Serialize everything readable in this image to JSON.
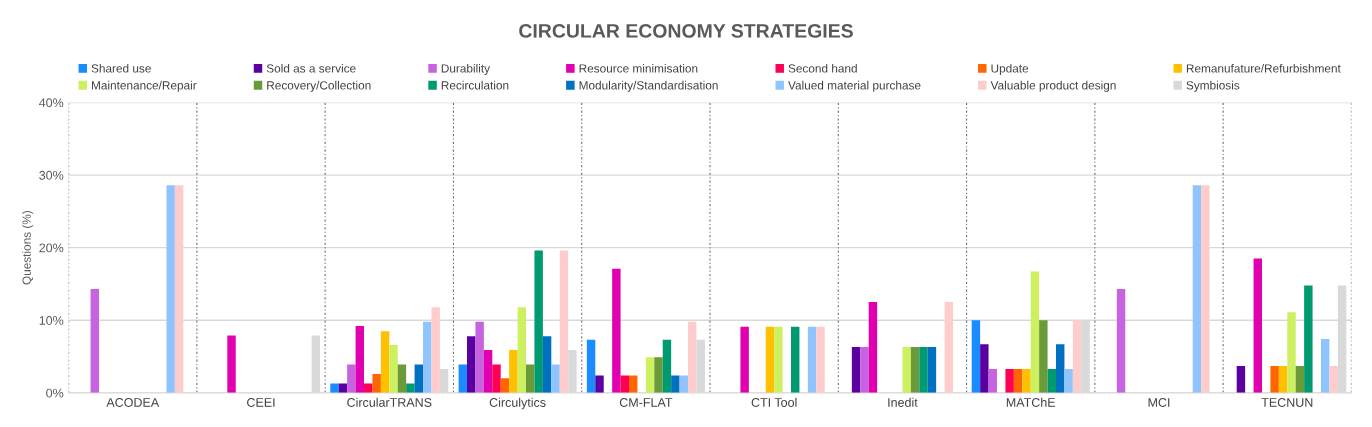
{
  "chart_data": {
    "type": "bar",
    "title": "CIRCULAR ECONOMY STRATEGIES",
    "ylabel": "Questions (%)",
    "categories": [
      "ACODEA",
      "CEEI",
      "CircularTRANS",
      "Circulytics",
      "CM-FLAT",
      "CTI Tool",
      "Inedit",
      "MATChE",
      "MCI",
      "TECNUN"
    ],
    "ylim": [
      0,
      40
    ],
    "yticks": [
      {
        "value": 0,
        "label": "0%"
      },
      {
        "value": 10,
        "label": "10%"
      },
      {
        "value": 20,
        "label": "20%"
      },
      {
        "value": 30,
        "label": "30%"
      },
      {
        "value": 40,
        "label": "40%"
      }
    ],
    "grid": "y",
    "legend": "top",
    "series": [
      {
        "name": "Shared use",
        "color": "#1a8cff",
        "values": [
          0,
          0,
          1.3,
          3.9,
          7.3,
          0,
          0,
          10,
          0,
          0
        ]
      },
      {
        "name": "Sold as a service",
        "color": "#5b00a0",
        "values": [
          0,
          0,
          1.3,
          7.8,
          2.4,
          0,
          6.3,
          6.7,
          0,
          3.7
        ]
      },
      {
        "name": "Durability",
        "color": "#c763e0",
        "values": [
          14.3,
          0,
          3.9,
          9.8,
          0,
          0,
          6.3,
          3.3,
          14.3,
          0
        ]
      },
      {
        "name": "Resource minimisation",
        "color": "#e000b0",
        "values": [
          0,
          7.9,
          9.2,
          5.9,
          17.1,
          9.1,
          12.5,
          0,
          0,
          18.5
        ]
      },
      {
        "name": "Second hand",
        "color": "#ff0055",
        "values": [
          0,
          0,
          1.3,
          3.9,
          2.4,
          0,
          0,
          3.3,
          0,
          0
        ]
      },
      {
        "name": "Update",
        "color": "#ff6600",
        "values": [
          0,
          0,
          2.6,
          2.0,
          2.4,
          0,
          0,
          3.3,
          0,
          3.7
        ]
      },
      {
        "name": "Remanufature/Refurbishment",
        "color": "#ffc000",
        "values": [
          0,
          0,
          8.5,
          5.9,
          0,
          9.1,
          0,
          3.3,
          0,
          3.7
        ]
      },
      {
        "name": "Maintenance/Repair",
        "color": "#ccf060",
        "values": [
          0,
          0,
          6.6,
          11.8,
          4.9,
          9.1,
          6.3,
          16.7,
          0,
          11.1
        ]
      },
      {
        "name": "Recovery/Collection",
        "color": "#6a9a3a",
        "values": [
          0,
          0,
          3.9,
          3.9,
          4.9,
          0,
          6.3,
          10,
          0,
          3.7
        ]
      },
      {
        "name": "Recirculation",
        "color": "#009a70",
        "values": [
          0,
          0,
          1.3,
          19.6,
          7.3,
          9.1,
          6.3,
          3.3,
          0,
          14.8
        ]
      },
      {
        "name": "Modularity/Standardisation",
        "color": "#0070c0",
        "values": [
          0,
          0,
          3.9,
          7.8,
          2.4,
          0,
          6.3,
          6.7,
          0,
          0
        ]
      },
      {
        "name": "Valued material purchase",
        "color": "#90c4ff",
        "values": [
          28.6,
          0,
          9.8,
          3.9,
          2.4,
          9.1,
          0,
          3.3,
          28.6,
          7.4
        ]
      },
      {
        "name": "Valuable product design",
        "color": "#ffcccc",
        "values": [
          28.6,
          0,
          11.8,
          19.6,
          9.8,
          9.1,
          12.5,
          10,
          28.6,
          3.7
        ]
      },
      {
        "name": "Symbiosis",
        "color": "#d9d9d9",
        "values": [
          0,
          7.9,
          3.3,
          5.9,
          7.3,
          0,
          0,
          10,
          0,
          14.8
        ]
      }
    ]
  }
}
